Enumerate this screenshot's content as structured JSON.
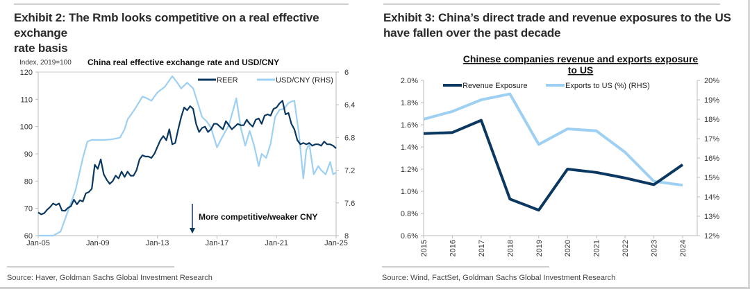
{
  "exhibits": [
    {
      "title": "Exhibit 2: The Rmb looks competitive on a real effective exchange rate basis",
      "title_line1": "Exhibit 2: The Rmb looks competitive on a real effective exchange",
      "title_line2": "rate basis",
      "source": "Source: Haver, Goldman Sachs Global Investment Research"
    },
    {
      "title": "Exhibit 3: China's direct trade and revenue exposures to the US have fallen over the past decade",
      "title_line1": "Exhibit 3: China’s direct trade and revenue exposures to the US",
      "title_line2": "have fallen over the past decade",
      "source": "Source: Wind, FactSet, Goldman Sachs Global Investment Research"
    }
  ],
  "chart_data": [
    {
      "type": "line",
      "title": "China real effective exchange rate and USD/CNY",
      "ylabel": "Index, 2019=100",
      "ylabel_right": "",
      "ylim": [
        60,
        120
      ],
      "ylim_right": [
        6,
        8
      ],
      "right_axis_inverted": true,
      "yticks": [
        "60",
        "70",
        "80",
        "90",
        "100",
        "110",
        "120"
      ],
      "yticks_right": [
        "6",
        "6.4",
        "6.8",
        "7.2",
        "7.6",
        "8"
      ],
      "xlim": [
        2005,
        2025
      ],
      "xticks": [
        "Jan-05",
        "Jan-09",
        "Jan-13",
        "Jan-17",
        "Jan-21",
        "Jan-25"
      ],
      "grid": false,
      "legend_position": "top-right",
      "annotation": "More competitive/weaker CNY",
      "colors": {
        "REER": "#0b3861",
        "USD/CNY (RHS)": "#9dd0f2"
      },
      "series": [
        {
          "name": "REER",
          "axis": "left",
          "x": [
            2005.0,
            2005.2,
            2005.4,
            2005.6,
            2005.8,
            2006.0,
            2006.2,
            2006.4,
            2006.6,
            2006.8,
            2007.0,
            2007.2,
            2007.4,
            2007.6,
            2007.8,
            2008.0,
            2008.2,
            2008.4,
            2008.6,
            2008.8,
            2009.0,
            2009.2,
            2009.4,
            2009.6,
            2009.8,
            2010.0,
            2010.2,
            2010.4,
            2010.6,
            2010.8,
            2011.0,
            2011.2,
            2011.4,
            2011.6,
            2011.8,
            2012.0,
            2012.2,
            2012.4,
            2012.6,
            2012.8,
            2013.0,
            2013.2,
            2013.4,
            2013.6,
            2013.8,
            2014.0,
            2014.2,
            2014.4,
            2014.6,
            2014.8,
            2015.0,
            2015.2,
            2015.4,
            2015.6,
            2015.8,
            2016.0,
            2016.2,
            2016.4,
            2016.6,
            2016.8,
            2017.0,
            2017.2,
            2017.4,
            2017.6,
            2017.8,
            2018.0,
            2018.2,
            2018.4,
            2018.6,
            2018.8,
            2019.0,
            2019.2,
            2019.4,
            2019.6,
            2019.8,
            2020.0,
            2020.2,
            2020.4,
            2020.6,
            2020.8,
            2021.0,
            2021.2,
            2021.4,
            2021.6,
            2021.8,
            2022.0,
            2022.2,
            2022.4,
            2022.6,
            2022.8,
            2023.0,
            2023.2,
            2023.4,
            2023.6,
            2023.8,
            2024.0,
            2024.2,
            2024.4,
            2024.6,
            2024.8,
            2025.0
          ],
          "values": [
            68.5,
            67.8,
            68.2,
            69.5,
            70.5,
            71.8,
            71.2,
            71.8,
            69.2,
            69.1,
            70.2,
            70.8,
            73.2,
            71.5,
            73.0,
            72.5,
            75.5,
            76.0,
            77.2,
            86.0,
            84.5,
            88.0,
            82.5,
            80.5,
            79.0,
            80.0,
            82.0,
            81.0,
            83.5,
            81.5,
            83.5,
            82.0,
            82.0,
            84.0,
            88.0,
            89.5,
            89.0,
            89.0,
            88.5,
            90.0,
            92.5,
            95.0,
            96.5,
            95.0,
            99.0,
            93.5,
            94.0,
            99.0,
            103.5,
            107.0,
            106.0,
            107.5,
            106.5,
            101.0,
            98.0,
            99.5,
            100.0,
            98.0,
            99.0,
            101.0,
            101.0,
            100.0,
            99.0,
            102.0,
            100.5,
            99.0,
            100.0,
            101.0,
            100.5,
            100.5,
            102.5,
            101.0,
            100.0,
            102.5,
            103.0,
            101.0,
            104.0,
            104.5,
            104.0,
            106.5,
            107.0,
            108.5,
            109.5,
            104.5,
            105.0,
            101.0,
            99.0,
            95.0,
            93.5,
            94.0,
            93.5,
            94.0,
            93.0,
            93.5,
            93.5,
            93.0,
            94.5,
            93.5,
            93.5,
            93.0,
            92.0
          ]
        },
        {
          "name": "USD/CNY (RHS)",
          "axis": "right",
          "x": [
            2005.0,
            2005.5,
            2006.0,
            2006.5,
            2007.0,
            2007.5,
            2008.0,
            2008.3,
            2008.6,
            2009.0,
            2009.5,
            2010.0,
            2010.5,
            2010.8,
            2011.0,
            2011.5,
            2012.0,
            2012.3,
            2012.6,
            2013.0,
            2013.5,
            2014.0,
            2014.3,
            2014.6,
            2015.0,
            2015.4,
            2015.7,
            2016.0,
            2016.3,
            2016.6,
            2017.0,
            2017.4,
            2017.8,
            2018.0,
            2018.3,
            2018.6,
            2018.9,
            2019.2,
            2019.5,
            2019.8,
            2020.0,
            2020.3,
            2020.6,
            2020.9,
            2021.2,
            2021.5,
            2021.8,
            2022.0,
            2022.2,
            2022.5,
            2022.8,
            2023.0,
            2023.2,
            2023.5,
            2023.8,
            2024.0,
            2024.3,
            2024.6,
            2024.8,
            2025.0
          ],
          "values": [
            8.28,
            8.1,
            8.05,
            7.95,
            7.7,
            7.45,
            7.05,
            6.85,
            6.83,
            6.83,
            6.83,
            6.82,
            6.8,
            6.7,
            6.58,
            6.45,
            6.3,
            6.32,
            6.35,
            6.25,
            6.18,
            6.05,
            6.12,
            6.2,
            6.13,
            6.2,
            6.37,
            6.55,
            6.6,
            6.68,
            6.92,
            6.78,
            6.65,
            6.52,
            6.32,
            6.68,
            6.9,
            6.72,
            6.9,
            7.15,
            7.0,
            7.05,
            6.88,
            6.55,
            6.46,
            6.45,
            6.38,
            6.36,
            6.35,
            6.75,
            7.3,
            6.95,
            6.88,
            7.25,
            7.15,
            7.2,
            7.25,
            7.1,
            7.25,
            7.23
          ]
        }
      ]
    },
    {
      "type": "line",
      "title": "Chinese companies revenue and exports exposure to US",
      "xlabel": "",
      "ylabel": "",
      "categories": [
        "2015",
        "2016",
        "2017",
        "2018",
        "2019",
        "2020",
        "2021",
        "2022",
        "2023",
        "2024"
      ],
      "ylim": [
        0.6,
        2.0
      ],
      "ylim_right": [
        12,
        20
      ],
      "yticks": [
        "0.6%",
        "0.8%",
        "1.0%",
        "1.2%",
        "1.4%",
        "1.6%",
        "1.8%",
        "2.0%"
      ],
      "yticks_right": [
        "12%",
        "13%",
        "14%",
        "15%",
        "16%",
        "17%",
        "18%",
        "19%",
        "20%"
      ],
      "grid": false,
      "legend_position": "top",
      "colors": {
        "Revenue Exposure": "#0b3861",
        "Exports to US (%) (RHS)": "#9dd0f2"
      },
      "series": [
        {
          "name": "Revenue Exposure",
          "axis": "left",
          "values": [
            1.52,
            1.53,
            1.64,
            0.93,
            0.83,
            1.2,
            1.17,
            1.12,
            1.06,
            1.24
          ]
        },
        {
          "name": "Exports to US (%) (RHS)",
          "axis": "right",
          "values": [
            18.0,
            18.4,
            19.0,
            19.3,
            16.7,
            17.5,
            17.4,
            16.3,
            14.8,
            14.6
          ]
        }
      ]
    }
  ]
}
